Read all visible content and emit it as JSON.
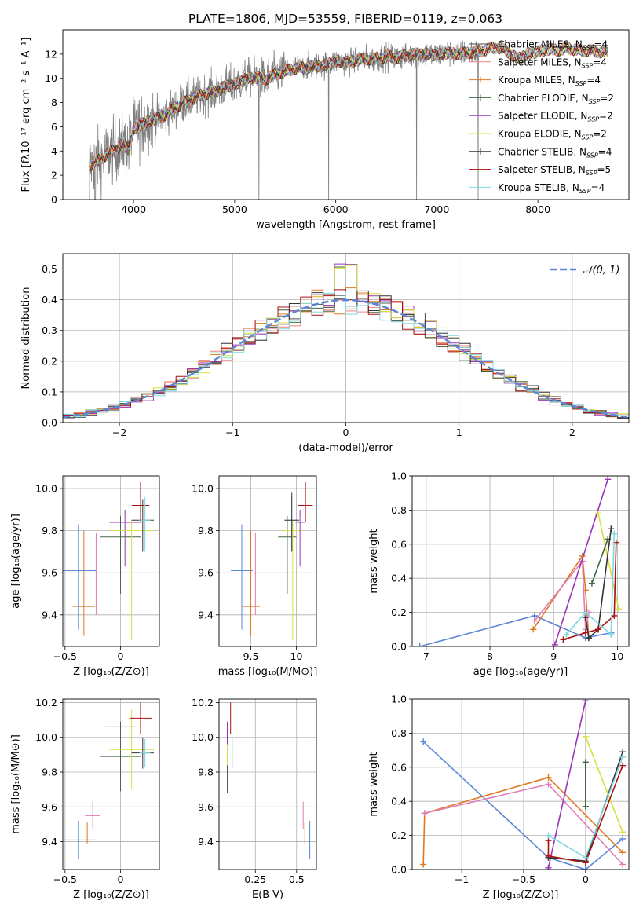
{
  "figure_title": "PLATE=1806, MJD=53559, FIBERID=0119, z=0.063",
  "colors": {
    "Chabrier MILES": "#4a4a4a",
    "Salpeter MILES": "#f08080",
    "Kroupa MILES": "#e07820",
    "Chabrier ELODIE": "#446644",
    "Salpeter ELODIE": "#9933bb",
    "Kroupa ELODIE": "#d8e040",
    "Chabrier STELIB": "#333333",
    "Salpeter STELIB": "#aa1111",
    "Kroupa STELIB": "#80d8e0",
    "extra_blue": "#5b86d6",
    "extra_pink": "#e07cb8",
    "spectrum_grey": "#808080"
  },
  "chart_data": [
    {
      "id": "spectrum",
      "type": "line",
      "title": "PLATE=1806, MJD=53559, FIBERID=0119, z=0.063",
      "xlabel": "wavelength [Angstrom, rest frame]",
      "ylabel": "Flux [fλ10⁻¹⁷ erg cm⁻² s⁻¹ A⁻¹]",
      "xlim": [
        3300,
        8900
      ],
      "ylim": [
        0,
        14
      ],
      "xticks": [
        4000,
        5000,
        6000,
        7000,
        8000
      ],
      "yticks": [
        0,
        2,
        4,
        6,
        8,
        10,
        12
      ],
      "legend": [
        {
          "label": "Chabrier MILES, N",
          "sub": "SSP",
          "suffix": "=4"
        },
        {
          "label": "Salpeter MILES, N",
          "sub": "SSP",
          "suffix": "=4"
        },
        {
          "label": "Kroupa MILES, N",
          "sub": "SSP",
          "suffix": "=4"
        },
        {
          "label": "Chabrier ELODIE, N",
          "sub": "SSP",
          "suffix": "=2"
        },
        {
          "label": "Salpeter ELODIE, N",
          "sub": "SSP",
          "suffix": "=2"
        },
        {
          "label": "Kroupa ELODIE, N",
          "sub": "SSP",
          "suffix": "=2"
        },
        {
          "label": "Chabrier STELIB, N",
          "sub": "SSP",
          "suffix": "=4"
        },
        {
          "label": "Salpeter STELIB, N",
          "sub": "SSP",
          "suffix": "=5"
        },
        {
          "label": "Kroupa STELIB, N",
          "sub": "SSP",
          "suffix": "=4"
        }
      ],
      "legend_placement": "top-right",
      "continuum": [
        [
          3560,
          2.8
        ],
        [
          3650,
          3.2
        ],
        [
          3750,
          3.8
        ],
        [
          3850,
          4.3
        ],
        [
          3900,
          4.6
        ],
        [
          3950,
          4.2
        ],
        [
          4000,
          5.8
        ],
        [
          4100,
          6.3
        ],
        [
          4200,
          6.6
        ],
        [
          4300,
          6.9
        ],
        [
          4400,
          7.5
        ],
        [
          4500,
          8.0
        ],
        [
          4600,
          8.4
        ],
        [
          4700,
          8.7
        ],
        [
          4800,
          8.9
        ],
        [
          4900,
          9.3
        ],
        [
          5000,
          9.5
        ],
        [
          5100,
          9.9
        ],
        [
          5200,
          10.1
        ],
        [
          5300,
          9.9
        ],
        [
          5400,
          10.3
        ],
        [
          5500,
          10.6
        ],
        [
          5600,
          10.8
        ],
        [
          5700,
          10.9
        ],
        [
          5800,
          11.0
        ],
        [
          5900,
          11.1
        ],
        [
          6000,
          11.4
        ],
        [
          6100,
          11.3
        ],
        [
          6200,
          11.5
        ],
        [
          6300,
          11.6
        ],
        [
          6400,
          11.6
        ],
        [
          6500,
          11.8
        ],
        [
          6600,
          11.7
        ],
        [
          6700,
          11.9
        ],
        [
          6800,
          12.0
        ],
        [
          6900,
          12.0
        ],
        [
          7000,
          11.9
        ],
        [
          7100,
          12.1
        ],
        [
          7200,
          12.0
        ],
        [
          7300,
          12.1
        ],
        [
          7400,
          12.2
        ],
        [
          7500,
          12.4
        ],
        [
          7600,
          12.6
        ],
        [
          7700,
          12.2
        ],
        [
          7800,
          11.6
        ],
        [
          7900,
          12.0
        ],
        [
          8000,
          12.2
        ],
        [
          8100,
          12.4
        ],
        [
          8200,
          12.3
        ],
        [
          8300,
          12.5
        ],
        [
          8400,
          12.3
        ],
        [
          8500,
          12.3
        ],
        [
          8600,
          12.2
        ]
      ],
      "spikes_down": [
        5240,
        5930,
        6800,
        7410
      ],
      "ranges": {
        "data": [
          3560,
          7420
        ],
        "models": [
          3560,
          8700
        ]
      }
    },
    {
      "id": "residuals",
      "type": "line",
      "xlabel": "(data-model)/error",
      "ylabel": "Normed distribution",
      "xlim": [
        -2.5,
        2.5
      ],
      "ylim": [
        0,
        0.55
      ],
      "xticks": [
        -2,
        -1,
        0,
        1,
        2
      ],
      "yticks": [
        0.0,
        0.1,
        0.2,
        0.3,
        0.4,
        0.5
      ],
      "legend": [
        "𝒩(0, 1)"
      ],
      "legend_placement": "top-right",
      "bin_width": 0.1,
      "gauss": {
        "mu": 0,
        "sigma": 1
      }
    },
    {
      "id": "age_vs_Z",
      "type": "scatter",
      "xlabel": "Z [log₁₀(Z/Z⊙)]",
      "ylabel": "age  [log₁₀(age/yr)]",
      "xlim": [
        -0.52,
        0.35
      ],
      "ylim": [
        9.25,
        10.06
      ],
      "xticks": [
        -0.5,
        0.0
      ],
      "yticks": [
        9.4,
        9.6,
        9.8,
        10.0
      ],
      "points": [
        {
          "model": "Kroupa MILES",
          "x": -0.33,
          "y": 9.44,
          "xerr": 0.1,
          "ylo": 9.3,
          "yhi": 9.8
        },
        {
          "model": "extra_blue",
          "x": -0.38,
          "y": 9.61,
          "xerr": 0.16,
          "ylo": 9.33,
          "yhi": 9.83
        },
        {
          "model": "extra_pink",
          "x": -0.22,
          "y": 9.6,
          "xerr": 0.0,
          "ylo": 9.4,
          "yhi": 9.79
        },
        {
          "model": "Salpeter ELODIE",
          "x": 0.04,
          "y": 9.84,
          "xerr": 0.14,
          "ylo": 9.63,
          "yhi": 9.9
        },
        {
          "model": "Chabrier ELODIE",
          "x": 0.0,
          "y": 9.77,
          "xerr": 0.18,
          "ylo": 9.5,
          "yhi": 9.87
        },
        {
          "model": "Kroupa ELODIE",
          "x": 0.1,
          "y": 9.8,
          "xerr": 0.2,
          "ylo": 9.28,
          "yhi": 9.85
        },
        {
          "model": "Salpeter STELIB",
          "x": 0.18,
          "y": 9.92,
          "xerr": 0.08,
          "ylo": 9.84,
          "yhi": 10.03
        },
        {
          "model": "Chabrier STELIB",
          "x": 0.2,
          "y": 9.85,
          "xerr": 0.1,
          "ylo": 9.7,
          "yhi": 9.95
        },
        {
          "model": "Kroupa STELIB",
          "x": 0.22,
          "y": 9.85,
          "xerr": 0.05,
          "ylo": 9.7,
          "yhi": 9.96
        }
      ]
    },
    {
      "id": "age_vs_mass",
      "type": "scatter",
      "xlabel": "mass [log₁₀(M/M⊙)]",
      "ylabel": "",
      "xlim": [
        9.15,
        10.22
      ],
      "ylim": [
        9.25,
        10.06
      ],
      "xticks": [
        9.5,
        10.0
      ],
      "yticks": [
        9.4,
        9.6,
        9.8,
        10.0
      ],
      "points": [
        {
          "model": "extra_blue",
          "x": 9.4,
          "y": 9.61,
          "xerr": 0.12,
          "ylo": 9.33,
          "yhi": 9.83
        },
        {
          "model": "Kroupa MILES",
          "x": 9.5,
          "y": 9.44,
          "xerr": 0.1,
          "ylo": 9.3,
          "yhi": 9.8
        },
        {
          "model": "extra_pink",
          "x": 9.55,
          "y": 9.6,
          "xerr": 0.0,
          "ylo": 9.4,
          "yhi": 9.79
        },
        {
          "model": "Chabrier ELODIE",
          "x": 9.9,
          "y": 9.77,
          "xerr": 0.1,
          "ylo": 9.5,
          "yhi": 9.87
        },
        {
          "model": "Kroupa ELODIE",
          "x": 9.96,
          "y": 9.8,
          "xerr": 0.1,
          "ylo": 9.28,
          "yhi": 9.85
        },
        {
          "model": "Kroupa STELIB",
          "x": 9.95,
          "y": 9.85,
          "xerr": 0.08,
          "ylo": 9.7,
          "yhi": 9.96
        },
        {
          "model": "Chabrier STELIB",
          "x": 9.95,
          "y": 9.85,
          "xerr": 0.08,
          "ylo": 9.7,
          "yhi": 9.98
        },
        {
          "model": "Salpeter ELODIE",
          "x": 10.04,
          "y": 9.84,
          "xerr": 0.05,
          "ylo": 9.63,
          "yhi": 9.9
        },
        {
          "model": "Salpeter STELIB",
          "x": 10.1,
          "y": 9.92,
          "xerr": 0.08,
          "ylo": 9.84,
          "yhi": 10.03
        }
      ]
    },
    {
      "id": "weight_vs_age",
      "type": "line",
      "xlabel": "age  [log₁₀(age/yr)]",
      "ylabel": "mass weight",
      "xlim": [
        6.78,
        10.18
      ],
      "ylim": [
        0,
        1.0
      ],
      "xticks": [
        7,
        8,
        9,
        10
      ],
      "yticks": [
        0.0,
        0.2,
        0.4,
        0.6,
        0.8,
        1.0
      ],
      "series": [
        {
          "model": "extra_blue",
          "points": [
            [
              6.9,
              0.0
            ],
            [
              8.7,
              0.18
            ],
            [
              9.5,
              0.05
            ],
            [
              9.9,
              0.08
            ]
          ]
        },
        {
          "model": "Kroupa MILES",
          "points": [
            [
              8.68,
              0.1
            ],
            [
              9.45,
              0.53
            ],
            [
              9.5,
              0.33
            ],
            [
              9.55,
              0.05
            ]
          ]
        },
        {
          "model": "extra_pink",
          "points": [
            [
              8.7,
              0.15
            ],
            [
              9.45,
              0.5
            ],
            [
              9.5,
              0.1
            ],
            [
              9.55,
              0.2
            ]
          ]
        },
        {
          "model": "Salpeter ELODIE",
          "points": [
            [
              9.02,
              0.01
            ],
            [
              9.85,
              0.98
            ]
          ]
        },
        {
          "model": "Kroupa ELODIE",
          "points": [
            [
              9.7,
              0.78
            ],
            [
              10.02,
              0.22
            ]
          ]
        },
        {
          "model": "Chabrier ELODIE",
          "points": [
            [
              9.6,
              0.37
            ],
            [
              9.85,
              0.63
            ]
          ]
        },
        {
          "model": "Chabrier STELIB",
          "points": [
            [
              9.5,
              0.17
            ],
            [
              9.55,
              0.05
            ],
            [
              9.7,
              0.1
            ],
            [
              9.9,
              0.69
            ]
          ]
        },
        {
          "model": "Salpeter STELIB",
          "points": [
            [
              9.15,
              0.04
            ],
            [
              9.5,
              0.08
            ],
            [
              9.7,
              0.1
            ],
            [
              9.95,
              0.18
            ],
            [
              9.98,
              0.61
            ]
          ]
        },
        {
          "model": "Kroupa STELIB",
          "points": [
            [
              9.2,
              0.07
            ],
            [
              9.5,
              0.2
            ],
            [
              9.9,
              0.07
            ],
            [
              9.95,
              0.66
            ]
          ]
        }
      ]
    },
    {
      "id": "mass_vs_Z",
      "type": "scatter",
      "xlabel": "Z [log₁₀(Z/Z⊙)]",
      "ylabel": "mass [log₁₀(M/M⊙)]",
      "xlim": [
        -0.52,
        0.35
      ],
      "ylim": [
        9.24,
        10.22
      ],
      "xticks": [
        -0.5,
        0.0
      ],
      "yticks": [
        9.4,
        9.6,
        9.8,
        10.0,
        10.2
      ],
      "points": [
        {
          "model": "extra_blue",
          "x": -0.38,
          "y": 9.41,
          "xerr": 0.16,
          "yerr": 0.11
        },
        {
          "model": "Kroupa MILES",
          "x": -0.3,
          "y": 9.45,
          "xerr": 0.1,
          "yerr": 0.06
        },
        {
          "model": "extra_pink",
          "x": -0.25,
          "y": 9.55,
          "xerr": 0.07,
          "yerr": 0.08
        },
        {
          "model": "Salpeter ELODIE",
          "x": 0.0,
          "y": 10.06,
          "xerr": 0.14,
          "yerr": 0.0
        },
        {
          "model": "Chabrier ELODIE",
          "x": 0.0,
          "y": 9.89,
          "xerr": 0.18,
          "yerr": 0.2
        },
        {
          "model": "Kroupa ELODIE",
          "x": 0.1,
          "y": 9.93,
          "xerr": 0.2,
          "yerr": 0.23
        },
        {
          "model": "Chabrier STELIB",
          "x": 0.2,
          "y": 9.91,
          "xerr": 0.1,
          "yerr": 0.09
        },
        {
          "model": "Kroupa STELIB",
          "x": 0.22,
          "y": 9.91,
          "xerr": 0.05,
          "yerr": 0.08
        },
        {
          "model": "Salpeter STELIB",
          "x": 0.18,
          "y": 10.11,
          "xerr": 0.1,
          "yerr": 0.09
        }
      ]
    },
    {
      "id": "mass_vs_ebv",
      "type": "scatter",
      "xlabel": "E(B-V)",
      "ylabel": "",
      "xlim": [
        0.03,
        0.62
      ],
      "ylim": [
        9.24,
        10.22
      ],
      "xticks": [
        0.25,
        0.5
      ],
      "yticks": [
        9.4,
        9.6,
        9.8,
        10.0,
        10.2
      ],
      "points": [
        {
          "model": "Salpeter ELODIE",
          "x": 0.08,
          "y": 10.0,
          "xerr": 0.0,
          "yerr": 0.09
        },
        {
          "model": "Kroupa ELODIE",
          "x": 0.08,
          "y": 9.82,
          "xerr": 0.0,
          "yerr": 0.14
        },
        {
          "model": "Chabrier ELODIE",
          "x": 0.08,
          "y": 9.76,
          "xerr": 0.0,
          "yerr": 0.08
        },
        {
          "model": "Salpeter STELIB",
          "x": 0.1,
          "y": 10.11,
          "xerr": 0.0,
          "yerr": 0.09
        },
        {
          "model": "Kroupa STELIB",
          "x": 0.11,
          "y": 9.91,
          "xerr": 0.0,
          "yerr": 0.09
        },
        {
          "model": "extra_pink",
          "x": 0.54,
          "y": 9.55,
          "xerr": 0.0,
          "yerr": 0.08
        },
        {
          "model": "Kroupa MILES",
          "x": 0.55,
          "y": 9.45,
          "xerr": 0.0,
          "yerr": 0.06
        },
        {
          "model": "extra_blue",
          "x": 0.58,
          "y": 9.41,
          "xerr": 0.0,
          "yerr": 0.11
        }
      ]
    },
    {
      "id": "weight_vs_Z",
      "type": "line",
      "xlabel": "Z [log₁₀(Z/Z⊙)]",
      "ylabel": "mass weight",
      "xlim": [
        -1.4,
        0.35
      ],
      "ylim": [
        0,
        1.0
      ],
      "xticks": [
        -1.0,
        -0.5,
        0.0
      ],
      "yticks": [
        0.0,
        0.2,
        0.4,
        0.6,
        0.8,
        1.0
      ],
      "series": [
        {
          "model": "extra_blue",
          "points": [
            [
              -1.31,
              0.75
            ],
            [
              -0.3,
              0.07
            ],
            [
              0.0,
              0.0
            ],
            [
              0.3,
              0.18
            ]
          ]
        },
        {
          "model": "Kroupa MILES",
          "points": [
            [
              -1.31,
              0.03
            ],
            [
              -1.3,
              0.33
            ],
            [
              -0.3,
              0.54
            ],
            [
              0.3,
              0.1
            ]
          ]
        },
        {
          "model": "extra_pink",
          "points": [
            [
              -1.3,
              0.33
            ],
            [
              -0.3,
              0.5
            ],
            [
              0.3,
              0.03
            ]
          ]
        },
        {
          "model": "Salpeter ELODIE",
          "points": [
            [
              -0.3,
              0.01
            ],
            [
              0.0,
              0.99
            ]
          ]
        },
        {
          "model": "Kroupa ELODIE",
          "points": [
            [
              0.0,
              0.78
            ],
            [
              0.3,
              0.22
            ]
          ]
        },
        {
          "model": "Chabrier ELODIE",
          "points": [
            [
              0.0,
              0.37
            ],
            [
              0.0,
              0.63
            ]
          ]
        },
        {
          "model": "Chabrier STELIB",
          "points": [
            [
              -0.3,
              0.07
            ],
            [
              0.0,
              0.05
            ],
            [
              0.3,
              0.69
            ]
          ]
        },
        {
          "model": "Salpeter STELIB",
          "points": [
            [
              -0.3,
              0.17
            ],
            [
              -0.3,
              0.08
            ],
            [
              0.0,
              0.04
            ],
            [
              0.3,
              0.61
            ]
          ]
        },
        {
          "model": "Kroupa STELIB",
          "points": [
            [
              -0.3,
              0.2
            ],
            [
              0.0,
              0.07
            ],
            [
              0.3,
              0.66
            ]
          ]
        }
      ]
    }
  ]
}
